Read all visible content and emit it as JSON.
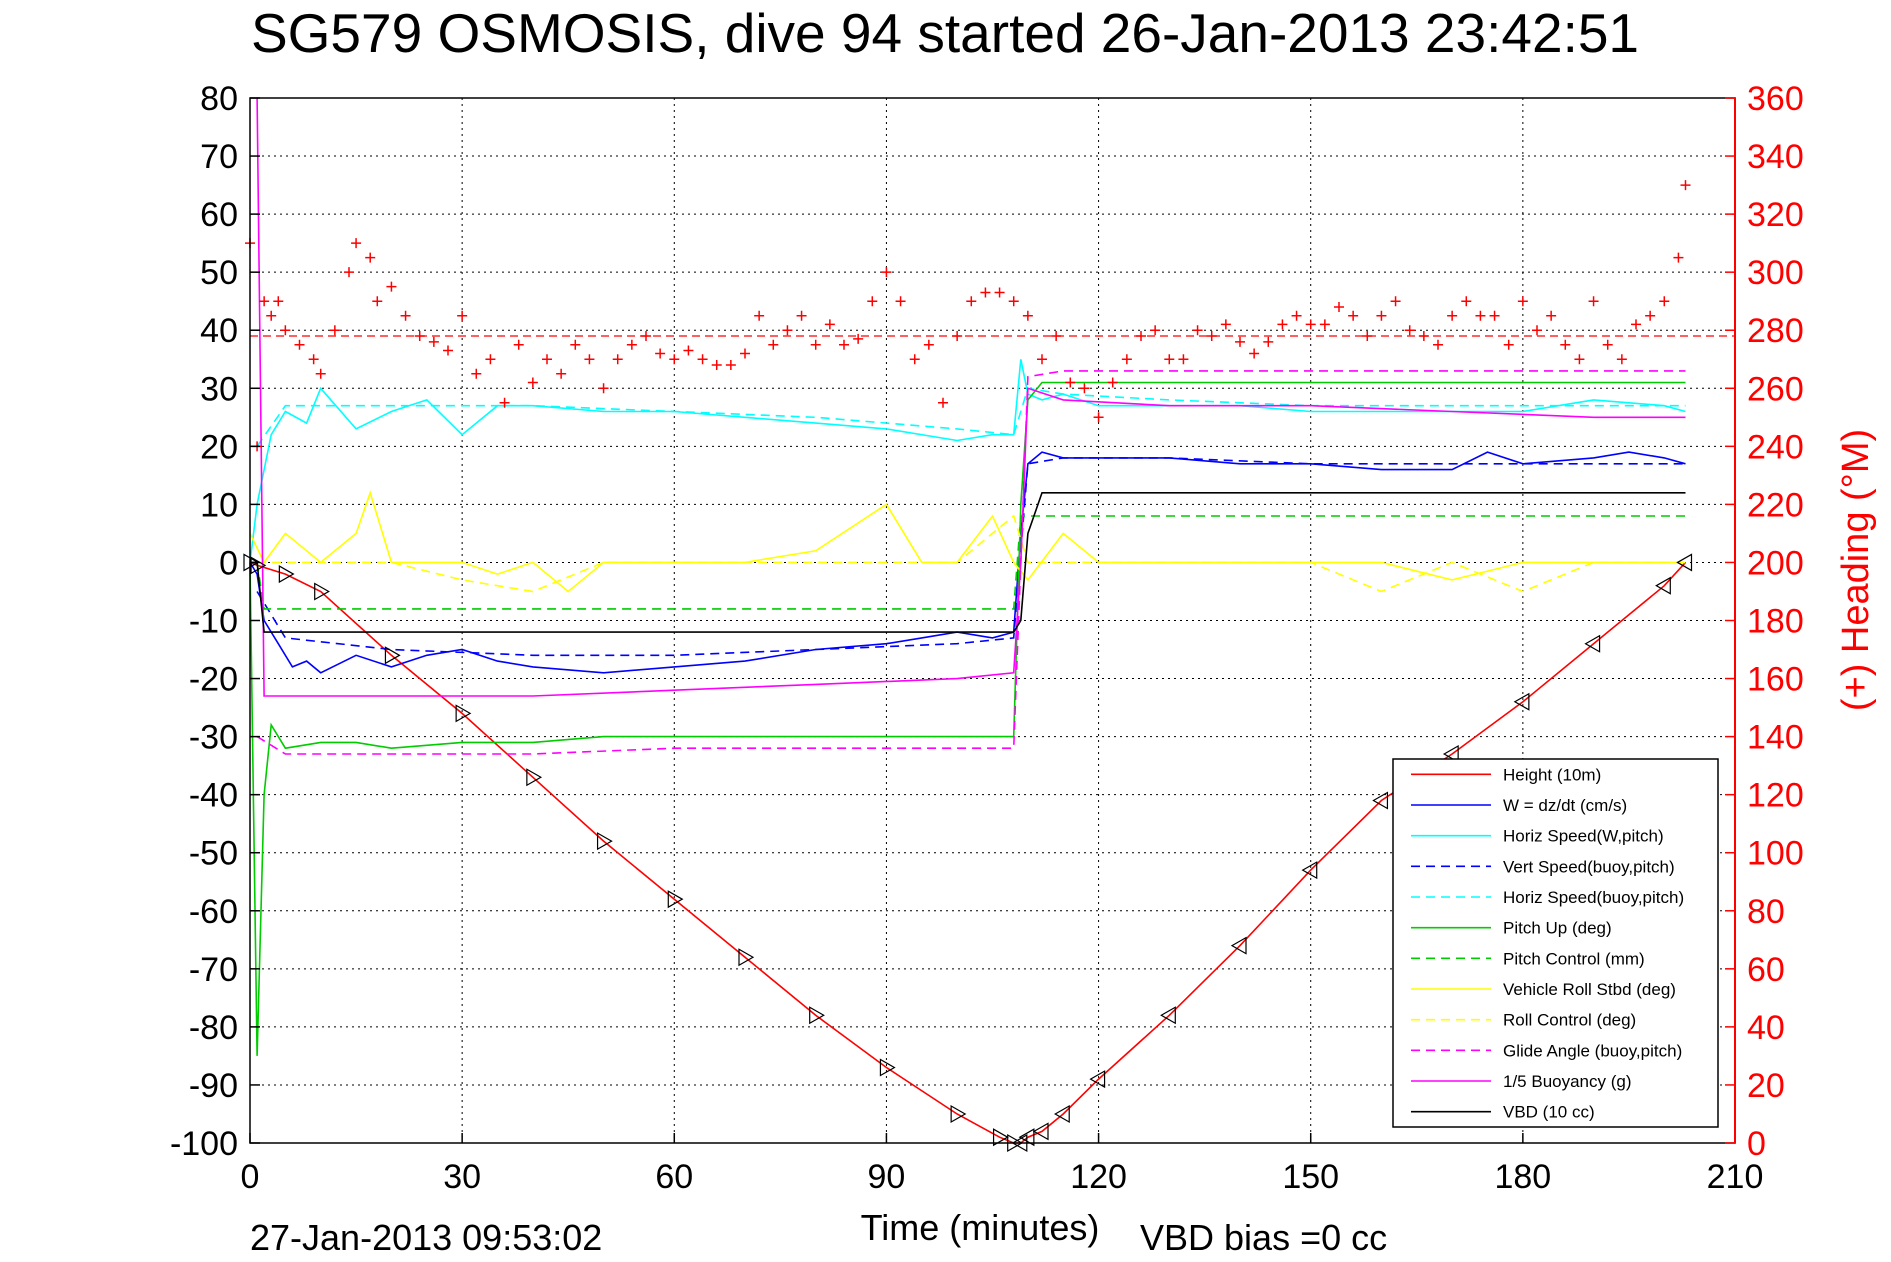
{
  "chart_data": {
    "type": "line",
    "title": "SG579 OSMOSIS, dive 94 started 26-Jan-2013 23:42:51",
    "xlabel": "Time (minutes)",
    "ylabel_right": "(+) Heading (°M)",
    "footer_left": "27-Jan-2013 09:53:02",
    "footer_center": "VBD bias =0 cc",
    "xlim": [
      0,
      210
    ],
    "ylim": [
      -100,
      80
    ],
    "ylim_right": [
      0,
      360
    ],
    "xticks": [
      "0",
      "30",
      "60",
      "90",
      "120",
      "150",
      "180",
      "210"
    ],
    "yticks": [
      "80",
      "70",
      "60",
      "50",
      "40",
      "30",
      "20",
      "10",
      "0",
      "-10",
      "-20",
      "-30",
      "-40",
      "-50",
      "-60",
      "-70",
      "-80",
      "-90",
      "-100"
    ],
    "yticks_right": [
      "360",
      "340",
      "320",
      "300",
      "280",
      "260",
      "240",
      "220",
      "200",
      "180",
      "160",
      "140",
      "120",
      "100",
      "80",
      "60",
      "40",
      "20",
      "0"
    ],
    "grid": true,
    "legend_position": "bottom-right",
    "heading_reference": 278,
    "series": [
      {
        "name": "Height (10m)",
        "color": "#ff0000",
        "style": "solid",
        "x": [
          0,
          1,
          5,
          10,
          20,
          30,
          40,
          50,
          60,
          70,
          80,
          90,
          100,
          106,
          108,
          109,
          110,
          112,
          115,
          120,
          130,
          140,
          150,
          160,
          170,
          180,
          190,
          200,
          203
        ],
        "y": [
          0,
          -0.5,
          -2,
          -5,
          -16,
          -26,
          -37,
          -48,
          -58,
          -68,
          -78,
          -87,
          -95,
          -99,
          -100,
          -100,
          -99,
          -98,
          -95,
          -89,
          -78,
          -66,
          -53,
          -41,
          -33,
          -24,
          -14,
          -4,
          0
        ]
      },
      {
        "name": "W = dz/dt (cm/s)",
        "color": "#0000ff",
        "style": "solid",
        "x": [
          0,
          1,
          2,
          4,
          6,
          8,
          10,
          15,
          20,
          25,
          30,
          35,
          40,
          50,
          60,
          70,
          80,
          90,
          95,
          100,
          105,
          108,
          109,
          110,
          112,
          115,
          120,
          130,
          140,
          150,
          160,
          170,
          175,
          180,
          190,
          195,
          200,
          203
        ],
        "y": [
          0,
          -2,
          -10,
          -14,
          -18,
          -17,
          -19,
          -16,
          -18,
          -16,
          -15,
          -17,
          -18,
          -19,
          -18,
          -17,
          -15,
          -14,
          -13,
          -12,
          -13,
          -12,
          5,
          17,
          19,
          18,
          18,
          18,
          17,
          17,
          16,
          16,
          19,
          17,
          18,
          19,
          18,
          17
        ]
      },
      {
        "name": "Horiz Speed(W,pitch)",
        "color": "#00ffff",
        "style": "solid",
        "x": [
          0,
          1,
          3,
          5,
          8,
          10,
          15,
          20,
          25,
          30,
          35,
          40,
          50,
          60,
          70,
          80,
          90,
          100,
          105,
          108,
          109,
          110,
          112,
          115,
          120,
          130,
          140,
          150,
          160,
          170,
          180,
          190,
          200,
          203
        ],
        "y": [
          0,
          10,
          22,
          26,
          24,
          30,
          23,
          26,
          28,
          22,
          27,
          27,
          26,
          26,
          25,
          24,
          23,
          21,
          22,
          22,
          35,
          29,
          28,
          29,
          27,
          27,
          27,
          26,
          26,
          26,
          26,
          28,
          27,
          26
        ]
      },
      {
        "name": "Vert Speed(buoy,pitch)",
        "color": "#0000ff",
        "style": "dashed",
        "x": [
          1,
          5,
          20,
          40,
          60,
          80,
          100,
          108,
          110,
          115,
          130,
          150,
          170,
          190,
          203
        ],
        "y": [
          -5,
          -13,
          -15,
          -16,
          -16,
          -15,
          -14,
          -13,
          17,
          18,
          18,
          17,
          17,
          17,
          17
        ]
      },
      {
        "name": "Horiz Speed(buoy,pitch)",
        "color": "#00ffff",
        "style": "dashed",
        "x": [
          1,
          5,
          20,
          40,
          60,
          80,
          100,
          108,
          110,
          115,
          130,
          150,
          170,
          190,
          203
        ],
        "y": [
          20,
          27,
          27,
          27,
          26,
          25,
          23,
          22,
          30,
          29,
          28,
          27,
          27,
          27,
          27
        ]
      },
      {
        "name": "Pitch Up (deg)",
        "color": "#00cc00",
        "style": "solid",
        "x": [
          0,
          1,
          2,
          3,
          5,
          10,
          15,
          20,
          30,
          40,
          50,
          60,
          70,
          80,
          90,
          100,
          108,
          109,
          110,
          112,
          115,
          130,
          150,
          170,
          190,
          200,
          203
        ],
        "y": [
          0,
          -85,
          -40,
          -28,
          -32,
          -31,
          -31,
          -32,
          -31,
          -31,
          -30,
          -30,
          -30,
          -30,
          -30,
          -30,
          -30,
          10,
          28,
          31,
          31,
          31,
          31,
          31,
          31,
          31,
          31
        ]
      },
      {
        "name": "Pitch Control (mm)",
        "color": "#00cc00",
        "style": "dashed",
        "x": [
          1,
          2,
          108,
          109,
          203
        ],
        "y": [
          0,
          -8,
          -8,
          8,
          8
        ]
      },
      {
        "name": "Vehicle Roll Stbd (deg)",
        "color": "#ffff00",
        "style": "solid",
        "x": [
          0,
          2,
          5,
          10,
          15,
          17,
          20,
          25,
          30,
          35,
          40,
          45,
          50,
          60,
          70,
          80,
          90,
          95,
          100,
          105,
          108,
          110,
          115,
          120,
          130,
          140,
          150,
          160,
          170,
          180,
          190,
          200,
          203
        ],
        "y": [
          5,
          0,
          5,
          0,
          5,
          12,
          0,
          0,
          0,
          -2,
          0,
          -5,
          0,
          0,
          0,
          2,
          10,
          0,
          0,
          8,
          0,
          -3,
          5,
          0,
          0,
          0,
          0,
          0,
          -3,
          0,
          0,
          0,
          0
        ]
      },
      {
        "name": "Roll Control (deg)",
        "color": "#ffff00",
        "style": "dashed",
        "x": [
          1,
          10,
          20,
          30,
          40,
          50,
          60,
          70,
          80,
          90,
          100,
          108,
          110,
          120,
          130,
          140,
          150,
          160,
          170,
          180,
          190,
          200,
          203
        ],
        "y": [
          0,
          0,
          0,
          -3,
          -5,
          0,
          0,
          0,
          0,
          0,
          0,
          8,
          0,
          0,
          0,
          0,
          0,
          -5,
          0,
          -5,
          0,
          0,
          0
        ]
      },
      {
        "name": "Glide Angle (buoy,pitch)",
        "color": "#ff00ff",
        "style": "dashed",
        "x": [
          1,
          5,
          20,
          40,
          60,
          80,
          100,
          108,
          110,
          115,
          130,
          150,
          170,
          190,
          203
        ],
        "y": [
          -30,
          -33,
          -33,
          -33,
          -32,
          -32,
          -32,
          -32,
          32,
          33,
          33,
          33,
          33,
          33,
          33
        ]
      },
      {
        "name": "1/5 Buoyancy (g)",
        "color": "#ff00ff",
        "style": "solid",
        "x": [
          1,
          2,
          5,
          20,
          40,
          60,
          80,
          100,
          108,
          109,
          110,
          115,
          130,
          150,
          170,
          190,
          203
        ],
        "y": [
          80,
          -23,
          -23,
          -23,
          -23,
          -22,
          -21,
          -20,
          -19,
          0,
          30,
          28,
          27,
          27,
          26,
          25,
          25
        ]
      },
      {
        "name": "VBD (10 cc)",
        "color": "#000000",
        "style": "solid",
        "x": [
          0,
          1,
          2,
          108,
          109,
          110,
          112,
          203
        ],
        "y": [
          0,
          0,
          -12,
          -12,
          -10,
          5,
          12,
          12
        ]
      }
    ],
    "heading_series": {
      "name": "(+) Heading (°M)",
      "color": "#ff0000",
      "marker": "+",
      "x": [
        0,
        1,
        2,
        3,
        4,
        5,
        7,
        9,
        10,
        12,
        14,
        15,
        17,
        18,
        20,
        22,
        24,
        26,
        28,
        30,
        32,
        34,
        36,
        38,
        40,
        42,
        44,
        46,
        48,
        50,
        52,
        54,
        56,
        58,
        60,
        62,
        64,
        66,
        68,
        70,
        72,
        74,
        76,
        78,
        80,
        82,
        84,
        86,
        88,
        90,
        92,
        94,
        96,
        98,
        100,
        102,
        104,
        106,
        108,
        110,
        112,
        114,
        116,
        118,
        120,
        122,
        124,
        126,
        128,
        130,
        132,
        134,
        136,
        138,
        140,
        142,
        144,
        146,
        148,
        150,
        152,
        154,
        156,
        158,
        160,
        162,
        164,
        166,
        168,
        170,
        172,
        174,
        176,
        178,
        180,
        182,
        184,
        186,
        188,
        190,
        192,
        194,
        196,
        198,
        200,
        202,
        203
      ],
      "y": [
        310,
        240,
        290,
        285,
        290,
        280,
        275,
        270,
        265,
        280,
        300,
        310,
        305,
        290,
        295,
        285,
        278,
        276,
        273,
        285,
        265,
        270,
        255,
        275,
        262,
        270,
        265,
        275,
        270,
        260,
        270,
        275,
        278,
        272,
        270,
        273,
        270,
        268,
        268,
        272,
        285,
        275,
        280,
        285,
        275,
        282,
        275,
        277,
        290,
        300,
        290,
        270,
        275,
        255,
        278,
        290,
        293,
        293,
        290,
        285,
        270,
        278,
        262,
        260,
        250,
        262,
        270,
        278,
        280,
        270,
        270,
        280,
        278,
        282,
        276,
        272,
        276,
        282,
        285,
        282,
        282,
        288,
        285,
        278,
        285,
        290,
        280,
        278,
        275,
        285,
        290,
        285,
        285,
        275,
        290,
        280,
        285,
        275,
        270,
        290,
        275,
        270,
        282,
        285,
        290,
        305,
        330
      ]
    }
  }
}
